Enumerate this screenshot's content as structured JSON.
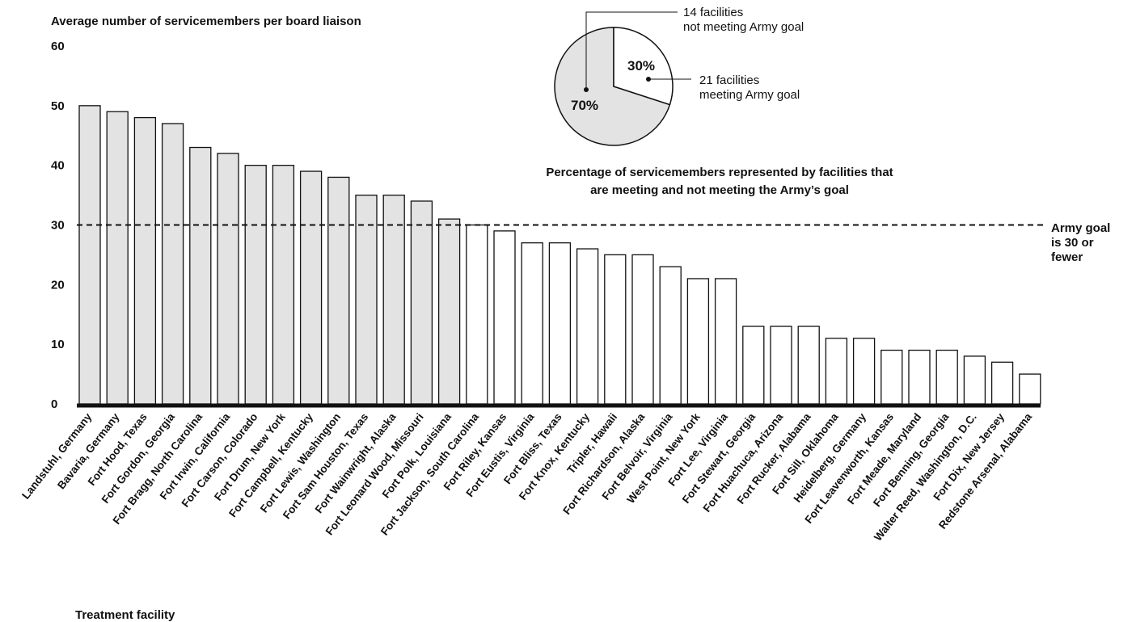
{
  "chart_data": {
    "type": "bar",
    "ylabel": "Average number of servicemembers per board liaison",
    "xlabel": "Treatment facility",
    "ylim": [
      0,
      60
    ],
    "yticks": [
      "0",
      "10",
      "20",
      "30",
      "40",
      "50",
      "60"
    ],
    "colors": {
      "above_goal": "#e3e3e3",
      "at_or_below_goal": "#ffffff",
      "stroke": "#111111"
    },
    "categories": [
      "Landstuhl, Germany",
      "Bavaria, Germany",
      "Fort Hood, Texas",
      "Fort Gordon, Georgia",
      "Fort Bragg, North Carolina",
      "Fort Irwin, California",
      "Fort Carson, Colorado",
      "Fort Drum, New York",
      "Fort Campbell, Kentucky",
      "Fort Lewis, Washington",
      "Fort Sam Houston, Texas",
      "Fort Wainwright, Alaska",
      "Fort Leonard Wood, Missouri",
      "Fort Polk, Louisiana",
      "Fort Jackson, South Carolina",
      "Fort Riley, Kansas",
      "Fort Eustis, Virginia",
      "Fort Bliss, Texas",
      "Fort Knox, Kentucky",
      "Tripler, Hawaii",
      "Fort Richardson, Alaska",
      "Fort Belvoir, Virginia",
      "West Point, New York",
      "Fort Lee, Virginia",
      "Fort Stewart, Georgia",
      "Fort Huachuca, Arizona",
      "Fort Rucker, Alabama",
      "Fort Sill, Oklahoma",
      "Heidelberg, Germany",
      "Fort Leavenworth, Kansas",
      "Fort Meade, Maryland",
      "Fort Benning, Georgia",
      "Walter Reed, Washington, D.C.",
      "Fort Dix, New Jersey",
      "Redstone Arsenal, Alabama"
    ],
    "values": [
      50,
      49,
      48,
      47,
      43,
      42,
      40,
      40,
      39,
      38,
      35,
      35,
      34,
      31,
      30,
      29,
      27,
      27,
      26,
      25,
      25,
      23,
      21,
      21,
      13,
      13,
      13,
      11,
      11,
      9,
      9,
      9,
      8,
      7,
      5
    ],
    "goal_line": {
      "value": 30,
      "label_lines": [
        "Army goal",
        "is 30 or",
        "fewer"
      ]
    },
    "inset_pie": {
      "type": "pie",
      "slices": [
        {
          "label": "70%",
          "value": 70,
          "color": "#e3e3e3",
          "callout": [
            "14 facilities",
            "not meeting Army goal"
          ]
        },
        {
          "label": "30%",
          "value": 30,
          "color": "#ffffff",
          "callout": [
            "21 facilities",
            "meeting Army goal"
          ]
        }
      ],
      "caption_lines": [
        "Percentage of servicemembers represented by facilities that",
        "are meeting and not meeting the Army’s goal"
      ]
    }
  }
}
